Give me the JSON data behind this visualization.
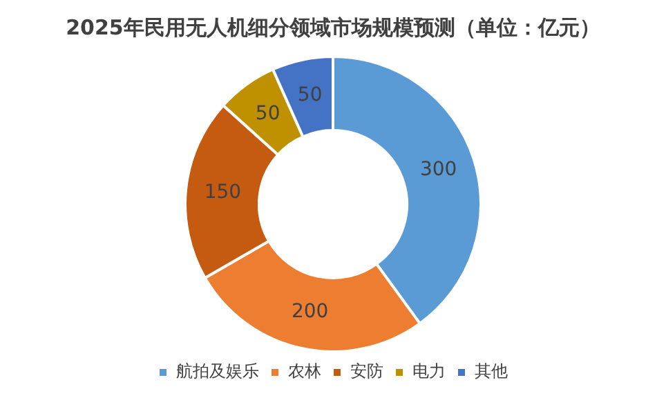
{
  "chart_data": {
    "type": "donut",
    "title": "2025年民用无人机细分领域市场规模预测（单位：亿元）",
    "categories": [
      "航拍及娱乐",
      "农林",
      "安防",
      "电力",
      "其他"
    ],
    "values": [
      300,
      200,
      150,
      50,
      50
    ],
    "colors": [
      "#5b9bd5",
      "#ed7d31",
      "#c55a11",
      "#bf9000",
      "#4472c4"
    ],
    "data_labels": true,
    "legend": "bottom"
  }
}
